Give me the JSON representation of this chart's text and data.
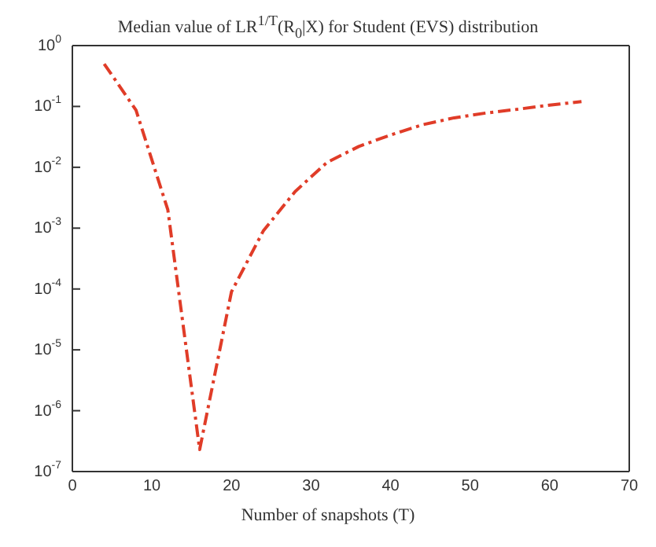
{
  "chart_data": {
    "type": "line",
    "title": "Median value of LR$^{1/T}$(R$_{0}$|X) for Student (EVS) distribution",
    "xlabel": "Number of snapshots (T)",
    "x": [
      4,
      8,
      12,
      16,
      20,
      24,
      28,
      32,
      36,
      40,
      44,
      48,
      52,
      56,
      60,
      64
    ],
    "series": [
      {
        "color": "#e03c28",
        "values": [
          0.5,
          0.087,
          0.002,
          2.3e-07,
          9e-05,
          0.0009,
          0.004,
          0.012,
          0.022,
          0.034,
          0.05,
          0.065,
          0.078,
          0.09,
          0.105,
          0.12
        ]
      }
    ],
    "log": "y",
    "xlim": [
      0,
      70
    ],
    "xticks": [
      0,
      10,
      20,
      30,
      40,
      50,
      60,
      70
    ],
    "ylim": [
      1e-07,
      1
    ],
    "yticks": [
      {
        "value": 1e-07,
        "label": "10$^{-7}$"
      },
      {
        "value": 1e-06,
        "label": "10$^{-6}$"
      },
      {
        "value": 1e-05,
        "label": "10$^{-5}$"
      },
      {
        "value": 0.0001,
        "label": "10$^{-4}$"
      },
      {
        "value": 0.001,
        "label": "10$^{-3}$"
      },
      {
        "value": 0.01,
        "label": "10$^{-2}$"
      },
      {
        "value": 0.1,
        "label": "10$^{-1}$"
      },
      {
        "value": 1,
        "label": "10$^{0}$"
      }
    ],
    "grid": false,
    "legend": false,
    "marker": "none",
    "line_style": "dashed"
  }
}
